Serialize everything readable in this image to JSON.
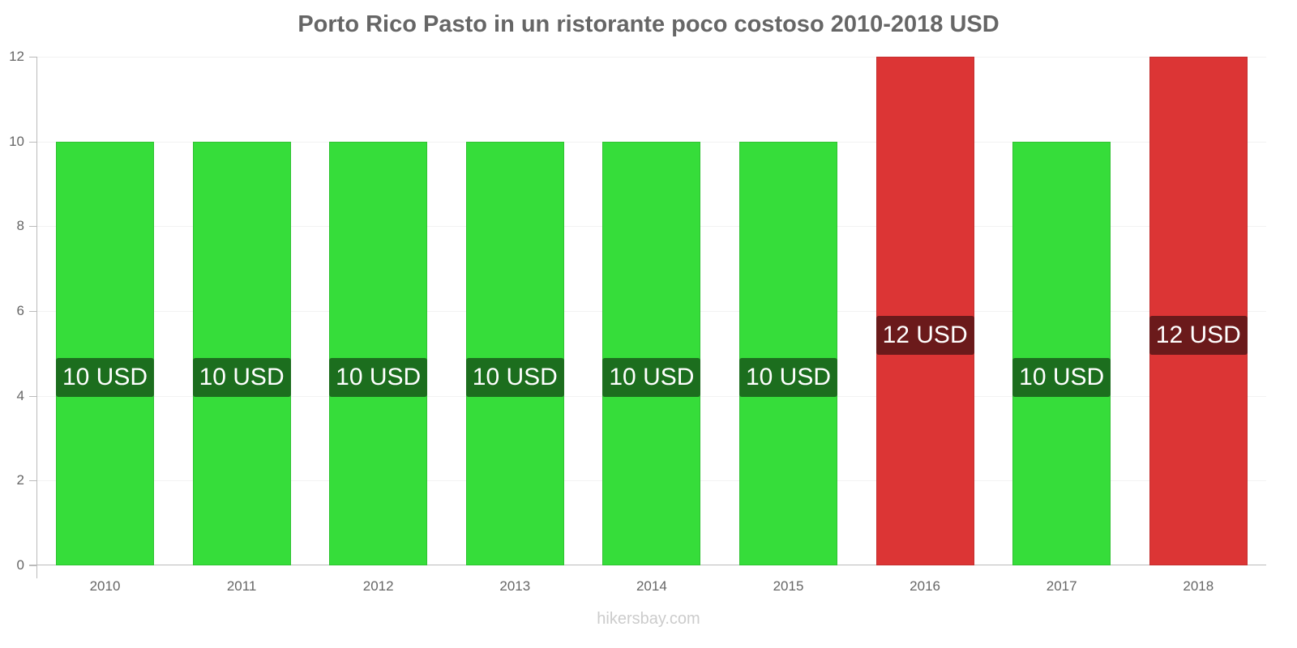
{
  "chart_data": {
    "type": "bar",
    "title": "Porto Rico Pasto in un ristorante poco costoso 2010-2018 USD",
    "xlabel": "",
    "ylabel": "",
    "categories": [
      "2010",
      "2011",
      "2012",
      "2013",
      "2014",
      "2015",
      "2016",
      "2017",
      "2018"
    ],
    "values": [
      10,
      10,
      10,
      10,
      10,
      10,
      12,
      10,
      12
    ],
    "data_labels": [
      "10 USD",
      "10 USD",
      "10 USD",
      "10 USD",
      "10 USD",
      "10 USD",
      "12 USD",
      "10 USD",
      "12 USD"
    ],
    "bar_colors": [
      "green",
      "green",
      "green",
      "green",
      "green",
      "green",
      "red",
      "green",
      "red"
    ],
    "ylim": [
      0,
      12
    ],
    "yticks": [
      "0",
      "2",
      "4",
      "6",
      "8",
      "10",
      "12"
    ],
    "grid": true,
    "legend": "none"
  },
  "colors": {
    "green_bar": "#36dd3a",
    "green_label": "#1c6e1e",
    "red_bar": "#dc3535",
    "red_label": "#6b1a1b",
    "title": "#666666"
  },
  "watermark": "hikersbay.com"
}
